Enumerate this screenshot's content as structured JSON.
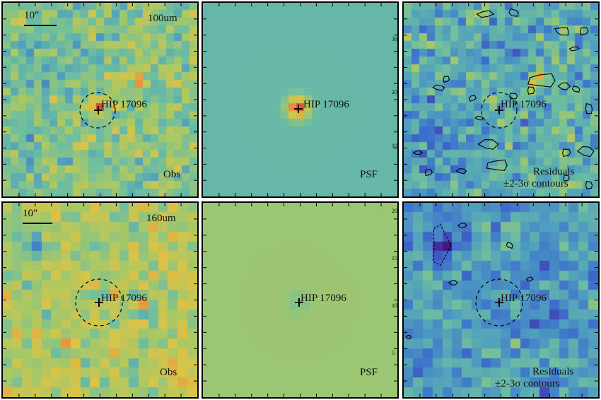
{
  "source_name": "HIP 17096",
  "scale_label": "10\"",
  "rows": [
    {
      "band_label": "100um",
      "panels": [
        {
          "kind": "obs",
          "corner_label": "Obs"
        },
        {
          "kind": "psf",
          "corner_label": "PSF"
        },
        {
          "kind": "resid",
          "corner_label": "Residuals",
          "contour_label": "±2-3σ contours"
        }
      ]
    },
    {
      "band_label": "160um",
      "panels": [
        {
          "kind": "obs",
          "corner_label": "Obs"
        },
        {
          "kind": "psf",
          "corner_label": "PSF"
        },
        {
          "kind": "resid",
          "corner_label": "Residuals",
          "contour_label": "±2-3σ contours"
        }
      ]
    }
  ],
  "colors": {
    "frame": "#000000",
    "background": "#ffffff"
  }
}
